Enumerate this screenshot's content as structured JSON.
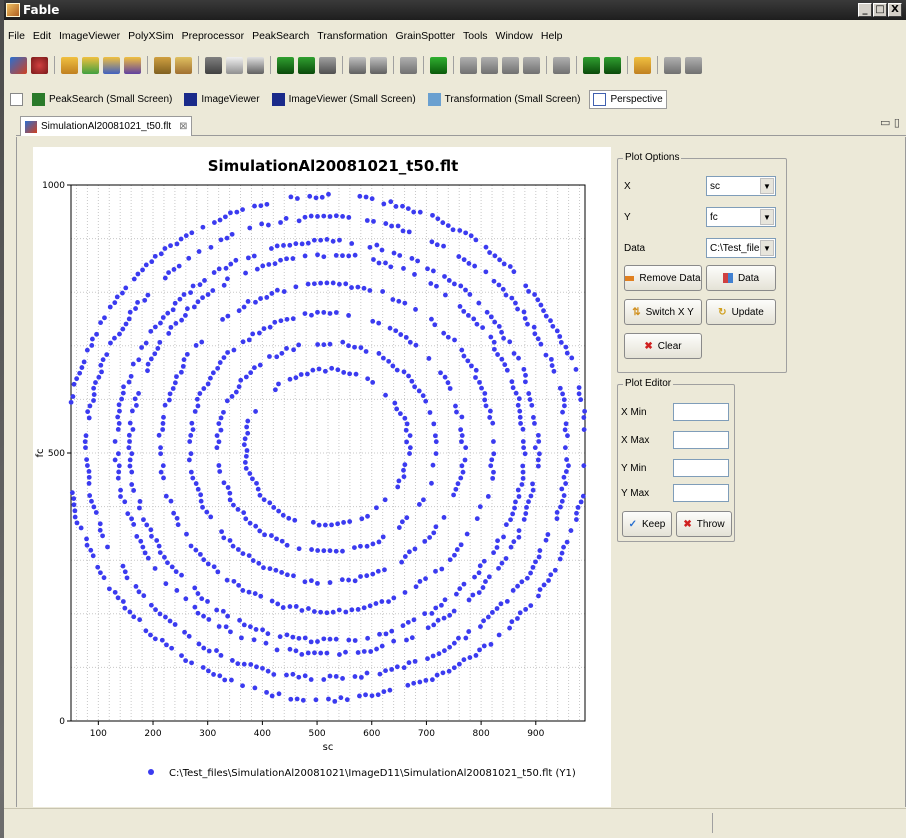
{
  "window": {
    "title": "Fable",
    "min": "_",
    "max": "□",
    "close": "X"
  },
  "menu": [
    "File",
    "Edit",
    "ImageViewer",
    "PolyXSim",
    "Preprocessor",
    "PeakSearch",
    "Transformation",
    "GrainSpotter",
    "Tools",
    "Window",
    "Help"
  ],
  "perspectives": [
    {
      "label": "PeakSearch (Small Screen)",
      "color": "#2a7a2a"
    },
    {
      "label": "ImageViewer",
      "color": "#1a2a8a"
    },
    {
      "label": "ImageViewer (Small Screen)",
      "color": "#1a2a8a"
    },
    {
      "label": "Transformation (Small Screen)",
      "color": "#6aa0d0"
    },
    {
      "label": "Perspective",
      "color": "#4060b0"
    }
  ],
  "editor_tab": {
    "label": "SimulationAl20081021_t50.flt",
    "close": "⊠"
  },
  "plot_options": {
    "title": "Plot Options",
    "x_label": "X",
    "x_value": "sc",
    "y_label": "Y",
    "y_value": "fc",
    "data_label": "Data",
    "data_value": "C:\\Test_files\\S",
    "remove_data": "Remove Data",
    "data_button": "Data",
    "switch_xy": "Switch X Y",
    "update": "Update",
    "clear": "Clear"
  },
  "plot_editor": {
    "title": "Plot Editor",
    "x_min": "X Min",
    "x_max": "X Max",
    "y_min": "Y Min",
    "y_max": "Y Max",
    "keep": "Keep",
    "throw": "Throw"
  },
  "colors": {
    "series": "#3b3bf0"
  },
  "chart_data": {
    "type": "scatter",
    "title": "SimulationAl20081021_t50.flt",
    "xlabel": "sc",
    "ylabel": "fc",
    "xlim": [
      50,
      990
    ],
    "ylim": [
      0,
      1000
    ],
    "xticks": [
      100,
      200,
      300,
      400,
      500,
      600,
      700,
      800,
      900
    ],
    "yticks": [
      0,
      500,
      1000
    ],
    "grid": true,
    "legend": "bottom",
    "series": [
      {
        "name": "C:\\Test_files\\SimulationAl20081021\\ImageD11\\SimulationAl20081021_t50.flt (Y1)",
        "rings": [
          {
            "cx": 518,
            "cy": 510,
            "rx": 475,
            "ry": 470
          },
          {
            "cx": 518,
            "cy": 510,
            "rx": 440,
            "ry": 430
          },
          {
            "cx": 518,
            "cy": 510,
            "rx": 385,
            "ry": 385
          },
          {
            "cx": 518,
            "cy": 510,
            "rx": 360,
            "ry": 360
          },
          {
            "cx": 518,
            "cy": 510,
            "rx": 305,
            "ry": 305
          },
          {
            "cx": 518,
            "cy": 510,
            "rx": 250,
            "ry": 250
          },
          {
            "cx": 518,
            "cy": 510,
            "rx": 200,
            "ry": 195
          },
          {
            "cx": 518,
            "cy": 510,
            "rx": 150,
            "ry": 145
          }
        ]
      }
    ]
  }
}
